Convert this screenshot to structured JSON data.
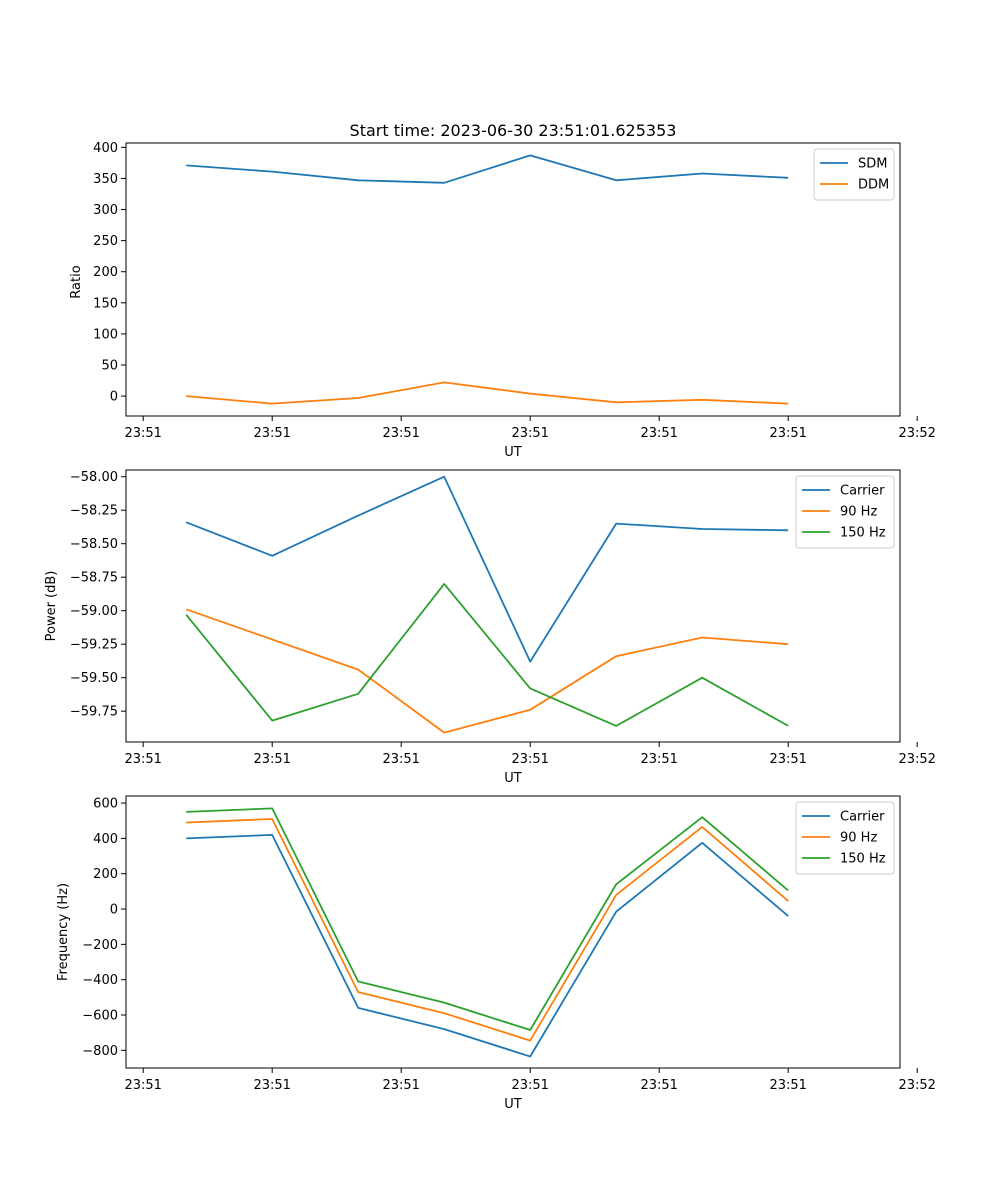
{
  "chart_data": [
    {
      "type": "line",
      "title": "Start time: 2023-06-30 23:51:01.625353",
      "xlabel": "UT",
      "ylabel": "Ratio",
      "xlim": [
        -0.2,
        8.8
      ],
      "ylim": [
        -32,
        407
      ],
      "x": [
        0.5,
        1.5,
        2.5,
        3.5,
        4.5,
        5.5,
        6.5,
        7.5
      ],
      "xticks": [
        0,
        1.5,
        3,
        4.5,
        6,
        7.5,
        9
      ],
      "xticklabels": [
        "23:51",
        "23:51",
        "23:51",
        "23:51",
        "23:51",
        "23:51",
        "23:52"
      ],
      "yticks": [
        0,
        50,
        100,
        150,
        200,
        250,
        300,
        350,
        400
      ],
      "yticklabels": [
        "0",
        "50",
        "100",
        "150",
        "200",
        "250",
        "300",
        "350",
        "400"
      ],
      "legend": "top-right",
      "grid": false,
      "series": [
        {
          "name": "SDM",
          "color": "#1f77b4",
          "values": [
            371,
            361,
            347,
            343,
            387,
            347,
            358,
            351
          ]
        },
        {
          "name": "DDM",
          "color": "#ff7f0e",
          "values": [
            0,
            -12,
            -3,
            22,
            4,
            -10,
            -6,
            -12
          ]
        }
      ]
    },
    {
      "type": "line",
      "title": "",
      "xlabel": "UT",
      "ylabel": "Power (dB)",
      "xlim": [
        -0.2,
        8.8
      ],
      "ylim": [
        -59.98,
        -57.95
      ],
      "x": [
        0.5,
        1.5,
        2.5,
        3.5,
        4.5,
        5.5,
        6.5,
        7.5
      ],
      "xticks": [
        0,
        1.5,
        3,
        4.5,
        6,
        7.5,
        9
      ],
      "xticklabels": [
        "23:51",
        "23:51",
        "23:51",
        "23:51",
        "23:51",
        "23:51",
        "23:52"
      ],
      "yticks": [
        -59.75,
        -59.5,
        -59.25,
        -59.0,
        -58.75,
        -58.5,
        -58.25,
        -58.0
      ],
      "yticklabels": [
        "−59.75",
        "−59.50",
        "−59.25",
        "−59.00",
        "−58.75",
        "−58.50",
        "−58.25",
        "−58.00"
      ],
      "legend": "top-right",
      "grid": false,
      "series": [
        {
          "name": "Carrier",
          "color": "#1f77b4",
          "x": [
            0.5,
            1.5,
            2.5,
            3.5,
            4.5,
            5.5,
            6.5,
            7.5
          ],
          "values": [
            -58.34,
            -58.59,
            -58.29,
            -58.0,
            -59.38,
            -58.35,
            -58.39,
            -58.4
          ]
        },
        {
          "name": "90 Hz",
          "color": "#ff7f0e",
          "x": [
            0.5,
            2.5,
            3.5,
            4.5,
            5.5,
            6.5,
            7.5
          ],
          "values": [
            -58.99,
            -59.44,
            -59.91,
            -59.74,
            -59.34,
            -59.2,
            -59.25
          ]
        },
        {
          "name": "150 Hz",
          "color": "#2ca02c",
          "x": [
            0.5,
            1.5,
            2.5,
            3.5,
            4.5,
            5.5,
            6.5,
            7.5
          ],
          "values": [
            -59.03,
            -59.82,
            -59.62,
            -58.8,
            -59.58,
            -59.86,
            -59.5,
            -59.86
          ]
        }
      ]
    },
    {
      "type": "line",
      "title": "",
      "xlabel": "UT",
      "ylabel": "Frequency (Hz)",
      "xlim": [
        -0.2,
        8.8
      ],
      "ylim": [
        -900,
        640
      ],
      "x": [
        0.5,
        1.5,
        2.5,
        3.5,
        4.5,
        5.5,
        6.5,
        7.5
      ],
      "xticks": [
        0,
        1.5,
        3,
        4.5,
        6,
        7.5,
        9
      ],
      "xticklabels": [
        "23:51",
        "23:51",
        "23:51",
        "23:51",
        "23:51",
        "23:51",
        "23:52"
      ],
      "yticks": [
        -800,
        -600,
        -400,
        -200,
        0,
        200,
        400,
        600
      ],
      "yticklabels": [
        "−800",
        "−600",
        "−400",
        "−200",
        "0",
        "200",
        "400",
        "600"
      ],
      "legend": "top-right",
      "grid": false,
      "series": [
        {
          "name": "Carrier",
          "color": "#1f77b4",
          "values": [
            400,
            420,
            -560,
            -680,
            -835,
            -15,
            375,
            -40
          ]
        },
        {
          "name": "90 Hz",
          "color": "#ff7f0e",
          "values": [
            490,
            510,
            -470,
            -590,
            -745,
            80,
            465,
            45
          ]
        },
        {
          "name": "150 Hz",
          "color": "#2ca02c",
          "values": [
            550,
            570,
            -410,
            -530,
            -685,
            140,
            520,
            105
          ]
        }
      ]
    }
  ]
}
